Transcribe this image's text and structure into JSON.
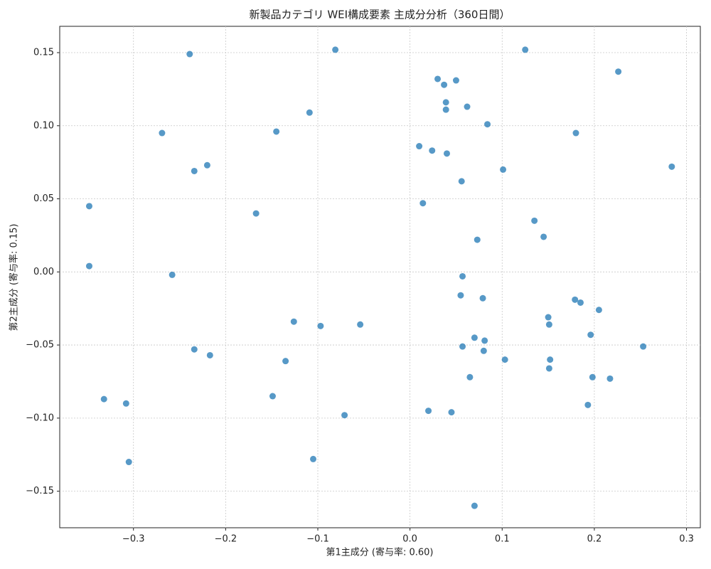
{
  "chart_data": {
    "type": "scatter",
    "title": "新製品カテゴリ WEI構成要素 主成分分析（360日間）",
    "x_label": "第1主成分 (寄与率: 0.60)",
    "y_label": "第2主成分 (寄与率: 0.15)",
    "color": "#1f77b4",
    "grid": true,
    "xlim": [
      -0.38,
      0.315
    ],
    "ylim": [
      -0.175,
      0.168
    ],
    "xticks": [
      {
        "value": -0.3,
        "label": "−0.3"
      },
      {
        "value": -0.2,
        "label": "−0.2"
      },
      {
        "value": -0.1,
        "label": "−0.1"
      },
      {
        "value": 0,
        "label": "0.0"
      },
      0.1,
      0.2,
      0.3
    ],
    "yticks": [
      {
        "value": -0.15,
        "label": "−0.15"
      },
      {
        "value": -0.1,
        "label": "−0.10"
      },
      {
        "value": -0.05,
        "label": "−0.05"
      },
      {
        "value": 0,
        "label": "0.00"
      },
      0.05,
      {
        "value": 0.1,
        "label": "0.10"
      },
      0.15
    ],
    "x": [
      -0.239,
      -0.081,
      0.125,
      0.226,
      0.03,
      0.05,
      0.037,
      0.039,
      0.039,
      0.062,
      -0.109,
      0.084,
      -0.269,
      -0.145,
      0.18,
      0.01,
      0.024,
      0.04,
      -0.22,
      -0.234,
      0.101,
      0.284,
      0.056,
      -0.348,
      0.014,
      -0.167,
      0.135,
      0.145,
      0.073,
      -0.348,
      -0.258,
      0.057,
      0.055,
      0.079,
      0.179,
      0.185,
      0.205,
      0.15,
      -0.126,
      -0.097,
      -0.054,
      0.151,
      0.196,
      0.07,
      0.081,
      0.057,
      0.08,
      0.253,
      -0.234,
      -0.217,
      -0.135,
      0.103,
      0.152,
      0.151,
      0.065,
      0.198,
      0.217,
      -0.149,
      -0.332,
      -0.308,
      0.193,
      0.02,
      0.045,
      -0.071,
      -0.105,
      -0.305,
      0.07
    ],
    "values": [
      0.149,
      0.152,
      0.152,
      0.137,
      0.132,
      0.131,
      0.128,
      0.116,
      0.111,
      0.113,
      0.109,
      0.101,
      0.095,
      0.096,
      0.095,
      0.086,
      0.083,
      0.081,
      0.073,
      0.069,
      0.07,
      0.072,
      0.062,
      0.045,
      0.047,
      0.04,
      0.035,
      0.024,
      0.022,
      0.004,
      -0.002,
      -0.003,
      -0.016,
      -0.018,
      -0.019,
      -0.021,
      -0.026,
      -0.031,
      -0.034,
      -0.037,
      -0.036,
      -0.036,
      -0.043,
      -0.045,
      -0.047,
      -0.051,
      -0.054,
      -0.051,
      -0.053,
      -0.057,
      -0.061,
      -0.06,
      -0.06,
      -0.066,
      -0.072,
      -0.072,
      -0.073,
      -0.085,
      -0.087,
      -0.09,
      -0.091,
      -0.095,
      -0.096,
      -0.098,
      -0.128,
      -0.13,
      -0.16
    ]
  }
}
